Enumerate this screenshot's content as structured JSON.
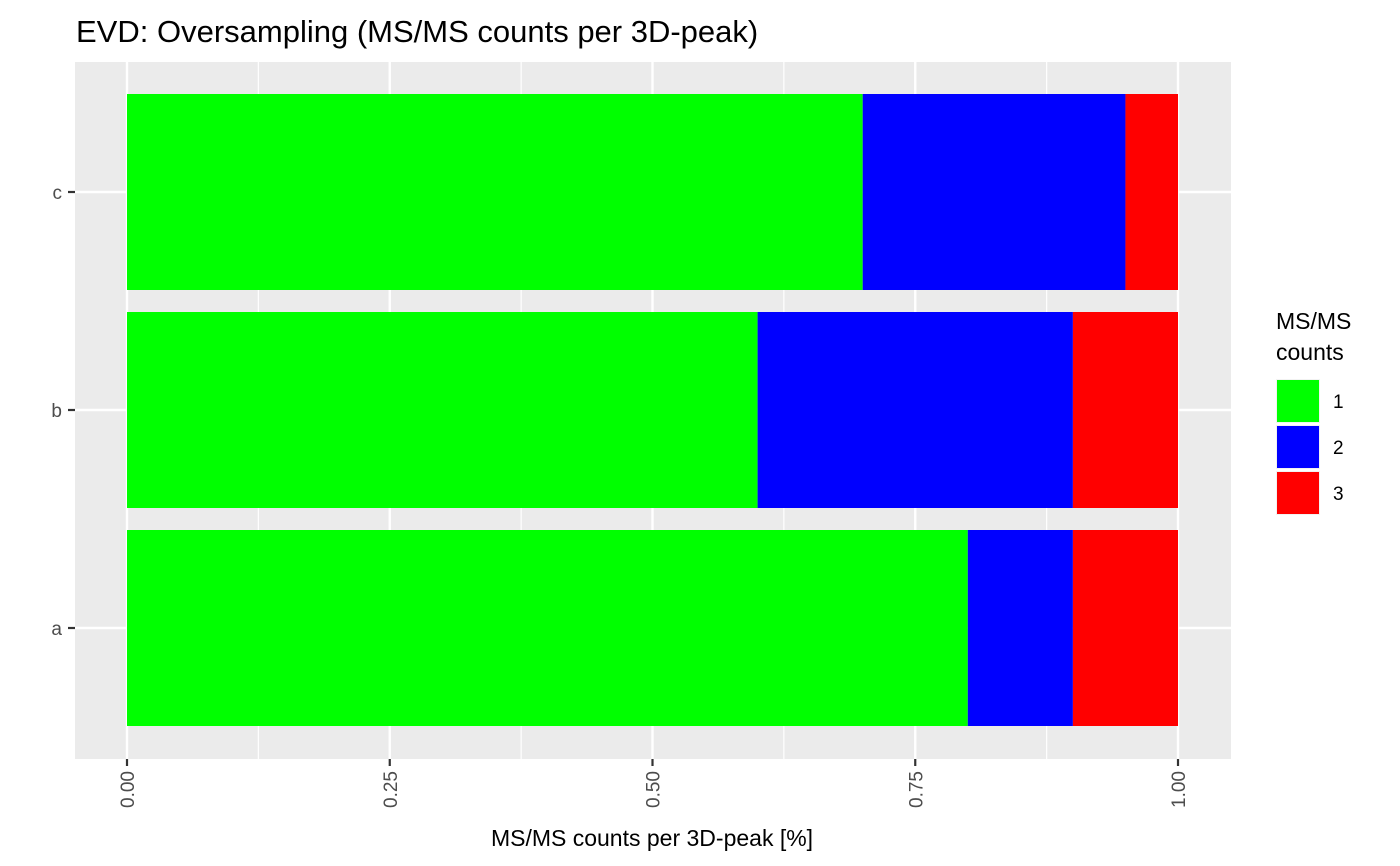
{
  "chart_data": {
    "type": "bar",
    "orientation": "horizontal",
    "stacked": true,
    "title": "EVD: Oversampling (MS/MS counts per 3D-peak)",
    "xlabel": "MS/MS counts per 3D-peak [%]",
    "ylabel": "",
    "categories": [
      "a",
      "b",
      "c"
    ],
    "xlim": [
      0,
      1
    ],
    "x_ticks": [
      "0.00",
      "0.25",
      "0.50",
      "0.75",
      "1.00"
    ],
    "grid": true,
    "legend": {
      "title_lines": [
        "MS/MS",
        "counts"
      ],
      "placement": "right"
    },
    "series": [
      {
        "name": "1",
        "color": "#00ff00",
        "values": [
          0.8,
          0.6,
          0.7
        ]
      },
      {
        "name": "2",
        "color": "#0000ff",
        "values": [
          0.1,
          0.3,
          0.25
        ]
      },
      {
        "name": "3",
        "color": "#ff0000",
        "values": [
          0.1,
          0.1,
          0.05
        ]
      }
    ]
  }
}
